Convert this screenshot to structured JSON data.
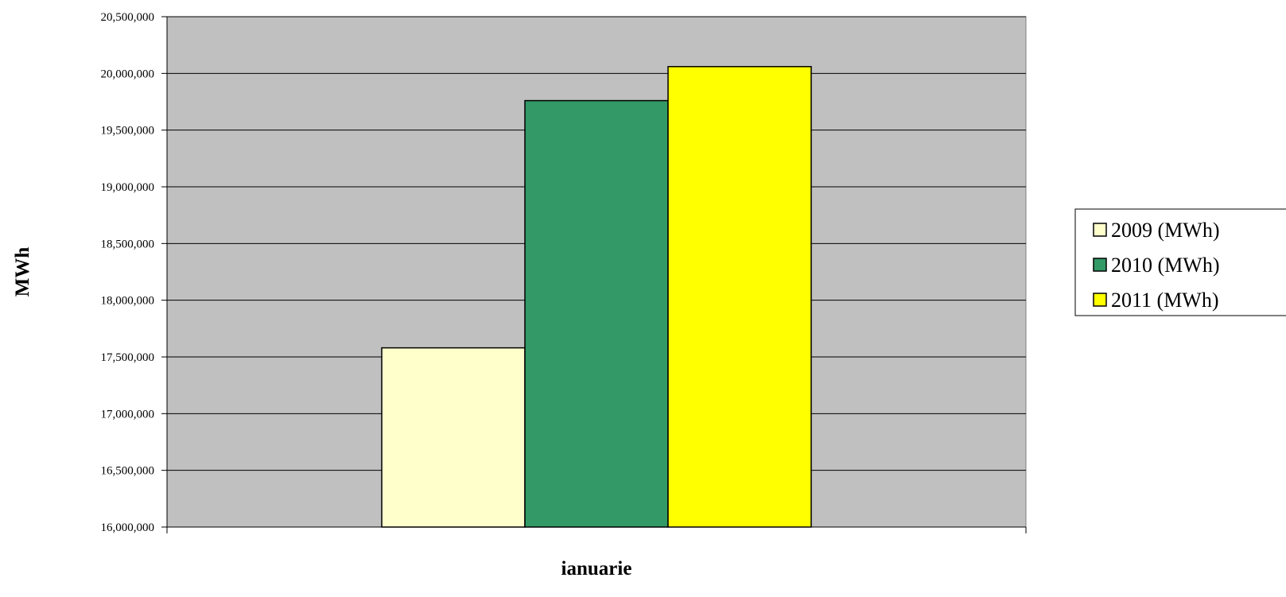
{
  "chart_data": {
    "type": "bar",
    "title": "",
    "xlabel": "ianuarie",
    "ylabel": "MWh",
    "categories": [
      "ianuarie"
    ],
    "series": [
      {
        "name": "2009 (MWh)",
        "values": [
          17580000
        ],
        "color": "#ffffcc"
      },
      {
        "name": "2010 (MWh)",
        "values": [
          19760000
        ],
        "color": "#339966"
      },
      {
        "name": "2011 (MWh)",
        "values": [
          20060000
        ],
        "color": "#ffff00"
      }
    ],
    "ylim": [
      16000000,
      20500000
    ],
    "yticks": [
      16000000,
      16500000,
      17000000,
      17500000,
      18000000,
      18500000,
      19000000,
      19500000,
      20000000,
      20500000
    ],
    "ytick_labels": [
      "16,000,000",
      "16,500,000",
      "17,000,000",
      "17,500,000",
      "18,000,000",
      "18,500,000",
      "19,000,000",
      "19,500,000",
      "20,000,000",
      "20,500,000"
    ],
    "grid": true,
    "plot_background": "#c0c0c0",
    "legend_position": "right"
  }
}
